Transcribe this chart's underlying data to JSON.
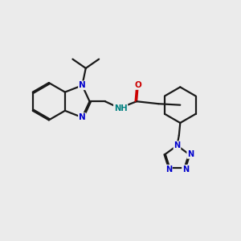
{
  "bg_color": "#ebebeb",
  "bond_color": "#1a1a1a",
  "N_color": "#0000cc",
  "O_color": "#cc0000",
  "H_color": "#008080",
  "line_width": 1.6,
  "dbo": 0.035,
  "xlim": [
    0,
    10
  ],
  "ylim": [
    0,
    10
  ]
}
